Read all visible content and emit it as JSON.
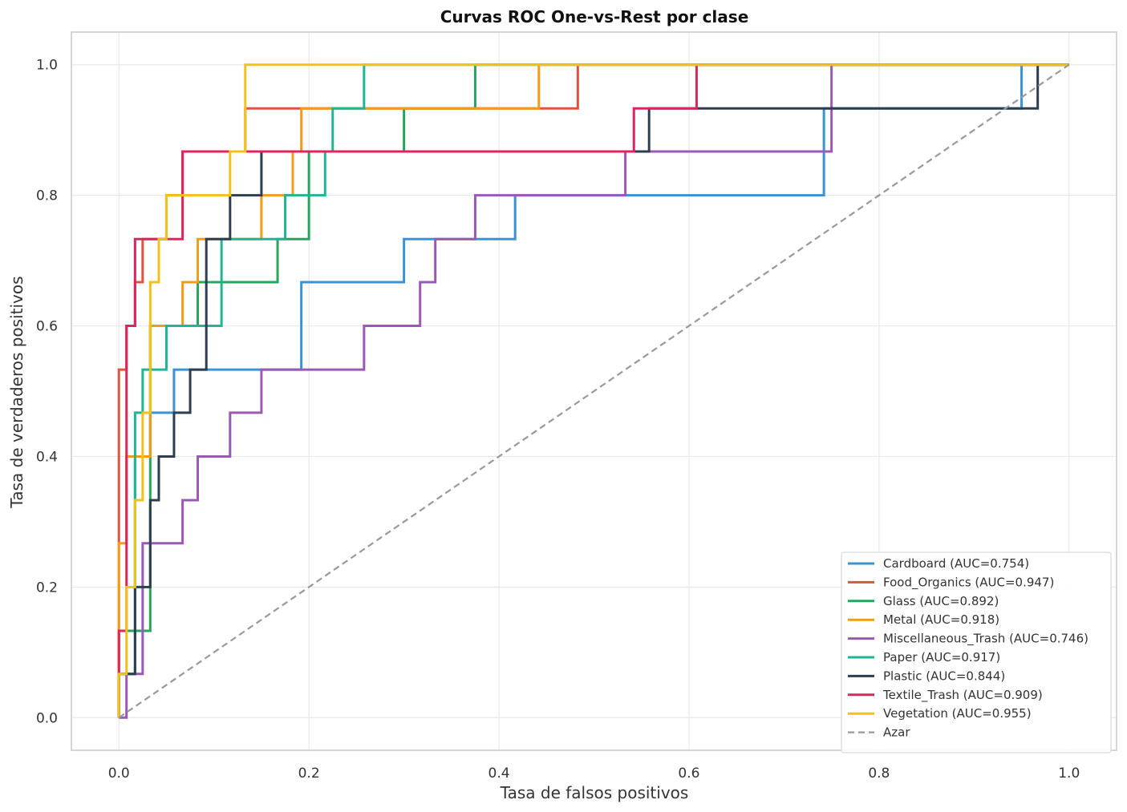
{
  "chart_data": {
    "type": "line",
    "title": "Curvas ROC One-vs-Rest por clase",
    "xlabel": "Tasa de falsos positivos",
    "ylabel": "Tasa de verdaderos positivos",
    "xlim": [
      -0.05,
      1.05
    ],
    "ylim": [
      -0.05,
      1.05
    ],
    "xticks": [
      0.0,
      0.2,
      0.4,
      0.6,
      0.8,
      1.0
    ],
    "yticks": [
      0.0,
      0.2,
      0.4,
      0.6,
      0.8,
      1.0
    ],
    "xtick_labels": [
      "0.0",
      "0.2",
      "0.4",
      "0.6",
      "0.8",
      "1.0"
    ],
    "ytick_labels": [
      "0.0",
      "0.2",
      "0.4",
      "0.6",
      "0.8",
      "1.0"
    ],
    "grid": true,
    "legend_position": "bottom-right",
    "series": [
      {
        "name": "Cardboard (AUC=0.754)",
        "color": "#3a93d6",
        "points": [
          [
            0,
            0
          ],
          [
            0,
            0.067
          ],
          [
            0.017,
            0.067
          ],
          [
            0.017,
            0.4
          ],
          [
            0.033,
            0.4
          ],
          [
            0.033,
            0.467
          ],
          [
            0.058,
            0.467
          ],
          [
            0.058,
            0.533
          ],
          [
            0.192,
            0.533
          ],
          [
            0.192,
            0.667
          ],
          [
            0.3,
            0.667
          ],
          [
            0.3,
            0.733
          ],
          [
            0.417,
            0.733
          ],
          [
            0.417,
            0.8
          ],
          [
            0.742,
            0.8
          ],
          [
            0.742,
            0.933
          ],
          [
            0.95,
            0.933
          ],
          [
            0.95,
            1.0
          ],
          [
            1.0,
            1.0
          ]
        ]
      },
      {
        "name": "Food_Organics (AUC=0.947)",
        "color": "#e05340",
        "points": [
          [
            0,
            0
          ],
          [
            0,
            0.533
          ],
          [
            0.008,
            0.533
          ],
          [
            0.008,
            0.6
          ],
          [
            0.017,
            0.6
          ],
          [
            0.017,
            0.667
          ],
          [
            0.025,
            0.667
          ],
          [
            0.025,
            0.733
          ],
          [
            0.05,
            0.733
          ],
          [
            0.05,
            0.8
          ],
          [
            0.067,
            0.8
          ],
          [
            0.067,
            0.867
          ],
          [
            0.133,
            0.867
          ],
          [
            0.133,
            0.933
          ],
          [
            0.483,
            0.933
          ],
          [
            0.483,
            1.0
          ],
          [
            1.0,
            1.0
          ]
        ]
      },
      {
        "name": "Glass (AUC=0.892)",
        "color": "#27a55d",
        "points": [
          [
            0,
            0
          ],
          [
            0,
            0.133
          ],
          [
            0.033,
            0.133
          ],
          [
            0.033,
            0.6
          ],
          [
            0.083,
            0.6
          ],
          [
            0.083,
            0.667
          ],
          [
            0.167,
            0.667
          ],
          [
            0.167,
            0.733
          ],
          [
            0.2,
            0.733
          ],
          [
            0.2,
            0.867
          ],
          [
            0.3,
            0.867
          ],
          [
            0.3,
            0.933
          ],
          [
            0.375,
            0.933
          ],
          [
            0.375,
            1.0
          ],
          [
            1.0,
            1.0
          ]
        ]
      },
      {
        "name": "Metal (AUC=0.918)",
        "color": "#f39c1c",
        "points": [
          [
            0,
            0
          ],
          [
            0,
            0.267
          ],
          [
            0.008,
            0.267
          ],
          [
            0.008,
            0.4
          ],
          [
            0.033,
            0.4
          ],
          [
            0.033,
            0.6
          ],
          [
            0.067,
            0.6
          ],
          [
            0.067,
            0.667
          ],
          [
            0.083,
            0.667
          ],
          [
            0.083,
            0.733
          ],
          [
            0.15,
            0.733
          ],
          [
            0.15,
            0.8
          ],
          [
            0.183,
            0.8
          ],
          [
            0.183,
            0.867
          ],
          [
            0.192,
            0.867
          ],
          [
            0.192,
            0.933
          ],
          [
            0.442,
            0.933
          ],
          [
            0.442,
            1.0
          ],
          [
            1.0,
            1.0
          ]
        ]
      },
      {
        "name": "Miscellaneous_Trash (AUC=0.746)",
        "color": "#9b59b6",
        "points": [
          [
            0,
            0
          ],
          [
            0.008,
            0
          ],
          [
            0.008,
            0.067
          ],
          [
            0.025,
            0.067
          ],
          [
            0.025,
            0.267
          ],
          [
            0.067,
            0.267
          ],
          [
            0.067,
            0.333
          ],
          [
            0.083,
            0.333
          ],
          [
            0.083,
            0.4
          ],
          [
            0.117,
            0.4
          ],
          [
            0.117,
            0.467
          ],
          [
            0.15,
            0.467
          ],
          [
            0.15,
            0.533
          ],
          [
            0.258,
            0.533
          ],
          [
            0.258,
            0.6
          ],
          [
            0.317,
            0.6
          ],
          [
            0.317,
            0.667
          ],
          [
            0.333,
            0.667
          ],
          [
            0.333,
            0.733
          ],
          [
            0.375,
            0.733
          ],
          [
            0.375,
            0.8
          ],
          [
            0.533,
            0.8
          ],
          [
            0.533,
            0.867
          ],
          [
            0.75,
            0.867
          ],
          [
            0.75,
            1.0
          ],
          [
            1.0,
            1.0
          ]
        ]
      },
      {
        "name": "Paper (AUC=0.917)",
        "color": "#20b594",
        "points": [
          [
            0,
            0
          ],
          [
            0,
            0.067
          ],
          [
            0.017,
            0.067
          ],
          [
            0.017,
            0.467
          ],
          [
            0.025,
            0.467
          ],
          [
            0.025,
            0.533
          ],
          [
            0.05,
            0.533
          ],
          [
            0.05,
            0.6
          ],
          [
            0.108,
            0.6
          ],
          [
            0.108,
            0.733
          ],
          [
            0.175,
            0.733
          ],
          [
            0.175,
            0.8
          ],
          [
            0.217,
            0.8
          ],
          [
            0.217,
            0.867
          ],
          [
            0.225,
            0.867
          ],
          [
            0.225,
            0.933
          ],
          [
            0.258,
            0.933
          ],
          [
            0.258,
            1.0
          ],
          [
            1.0,
            1.0
          ]
        ]
      },
      {
        "name": "Plastic (AUC=0.844)",
        "color": "#2c3e50",
        "points": [
          [
            0,
            0
          ],
          [
            0,
            0.067
          ],
          [
            0.017,
            0.067
          ],
          [
            0.017,
            0.2
          ],
          [
            0.033,
            0.2
          ],
          [
            0.033,
            0.333
          ],
          [
            0.042,
            0.333
          ],
          [
            0.042,
            0.4
          ],
          [
            0.058,
            0.4
          ],
          [
            0.058,
            0.467
          ],
          [
            0.075,
            0.467
          ],
          [
            0.075,
            0.533
          ],
          [
            0.092,
            0.533
          ],
          [
            0.092,
            0.733
          ],
          [
            0.117,
            0.733
          ],
          [
            0.117,
            0.8
          ],
          [
            0.15,
            0.8
          ],
          [
            0.15,
            0.867
          ],
          [
            0.558,
            0.867
          ],
          [
            0.558,
            0.933
          ],
          [
            0.967,
            0.933
          ],
          [
            0.967,
            1.0
          ],
          [
            1.0,
            1.0
          ]
        ]
      },
      {
        "name": "Textile_Trash (AUC=0.909)",
        "color": "#e0245e",
        "points": [
          [
            0,
            0
          ],
          [
            0,
            0.133
          ],
          [
            0.008,
            0.133
          ],
          [
            0.008,
            0.6
          ],
          [
            0.017,
            0.6
          ],
          [
            0.017,
            0.733
          ],
          [
            0.067,
            0.733
          ],
          [
            0.067,
            0.867
          ],
          [
            0.542,
            0.867
          ],
          [
            0.542,
            0.933
          ],
          [
            0.608,
            0.933
          ],
          [
            0.608,
            1.0
          ],
          [
            1.0,
            1.0
          ]
        ]
      },
      {
        "name": "Vegetation (AUC=0.955)",
        "color": "#f1c21b",
        "points": [
          [
            0,
            0
          ],
          [
            0,
            0.067
          ],
          [
            0.008,
            0.067
          ],
          [
            0.008,
            0.2
          ],
          [
            0.017,
            0.2
          ],
          [
            0.017,
            0.333
          ],
          [
            0.025,
            0.333
          ],
          [
            0.025,
            0.467
          ],
          [
            0.033,
            0.467
          ],
          [
            0.033,
            0.667
          ],
          [
            0.042,
            0.667
          ],
          [
            0.042,
            0.733
          ],
          [
            0.05,
            0.733
          ],
          [
            0.05,
            0.8
          ],
          [
            0.117,
            0.8
          ],
          [
            0.117,
            0.867
          ],
          [
            0.133,
            0.867
          ],
          [
            0.133,
            1.0
          ],
          [
            1.0,
            1.0
          ]
        ]
      },
      {
        "name": "Azar",
        "color": "#999999",
        "dashed": true,
        "points": [
          [
            0,
            0
          ],
          [
            1,
            1
          ]
        ]
      }
    ]
  }
}
